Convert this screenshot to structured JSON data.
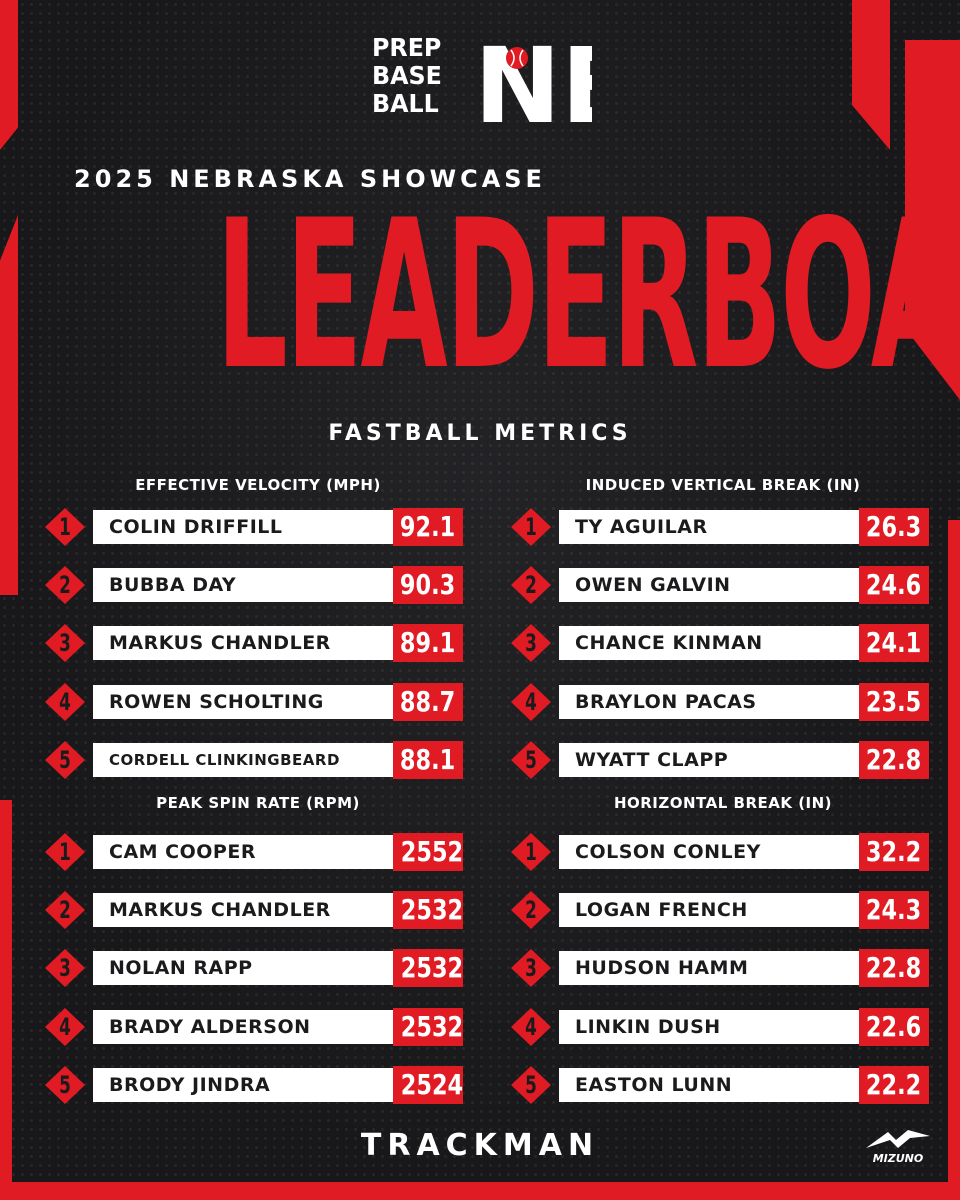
{
  "logo": {
    "line1": "PREP",
    "line2": "BASE",
    "line3": "BALL",
    "region": "NE"
  },
  "subtitle": "2025 NEBRASKA SHOWCASE",
  "headline": "LEADERBOARD",
  "section_title": "FASTBALL METRICS",
  "categories": [
    {
      "title": "EFFECTIVE VELOCITY (MPH)",
      "rows": [
        {
          "rank": "1",
          "name": "COLIN DRIFFILL",
          "value": "92.1"
        },
        {
          "rank": "2",
          "name": "BUBBA DAY",
          "value": "90.3"
        },
        {
          "rank": "3",
          "name": "MARKUS CHANDLER",
          "value": "89.1"
        },
        {
          "rank": "4",
          "name": "ROWEN SCHOLTING",
          "value": "88.7"
        },
        {
          "rank": "5",
          "name": "CORDELL CLINKINGBEARD",
          "value": "88.1"
        }
      ]
    },
    {
      "title": "INDUCED VERTICAL BREAK (IN)",
      "rows": [
        {
          "rank": "1",
          "name": "TY AGUILAR",
          "value": "26.3"
        },
        {
          "rank": "2",
          "name": "OWEN GALVIN",
          "value": "24.6"
        },
        {
          "rank": "3",
          "name": "CHANCE KINMAN",
          "value": "24.1"
        },
        {
          "rank": "4",
          "name": "BRAYLON PACAS",
          "value": "23.5"
        },
        {
          "rank": "5",
          "name": "WYATT CLAPP",
          "value": "22.8"
        }
      ]
    },
    {
      "title": "PEAK SPIN RATE (RPM)",
      "rows": [
        {
          "rank": "1",
          "name": "CAM COOPER",
          "value": "2552"
        },
        {
          "rank": "2",
          "name": "MARKUS CHANDLER",
          "value": "2532"
        },
        {
          "rank": "3",
          "name": "NOLAN RAPP",
          "value": "2532"
        },
        {
          "rank": "4",
          "name": "BRADY ALDERSON",
          "value": "2532"
        },
        {
          "rank": "5",
          "name": "BRODY JINDRA",
          "value": "2524"
        }
      ]
    },
    {
      "title": "HORIZONTAL BREAK (IN)",
      "rows": [
        {
          "rank": "1",
          "name": "COLSON CONLEY",
          "value": "32.2"
        },
        {
          "rank": "2",
          "name": "LOGAN FRENCH",
          "value": "24.3"
        },
        {
          "rank": "3",
          "name": "HUDSON HAMM",
          "value": "22.8"
        },
        {
          "rank": "4",
          "name": "LINKIN DUSH",
          "value": "22.6"
        },
        {
          "rank": "5",
          "name": "EASTON LUNN",
          "value": "22.2"
        }
      ]
    }
  ],
  "sponsor_primary": "TRACKMAN",
  "sponsor_secondary": "MIZUNO",
  "colors": {
    "accent": "#e01b23",
    "background": "#1b1b1d",
    "bar": "#ffffff"
  }
}
